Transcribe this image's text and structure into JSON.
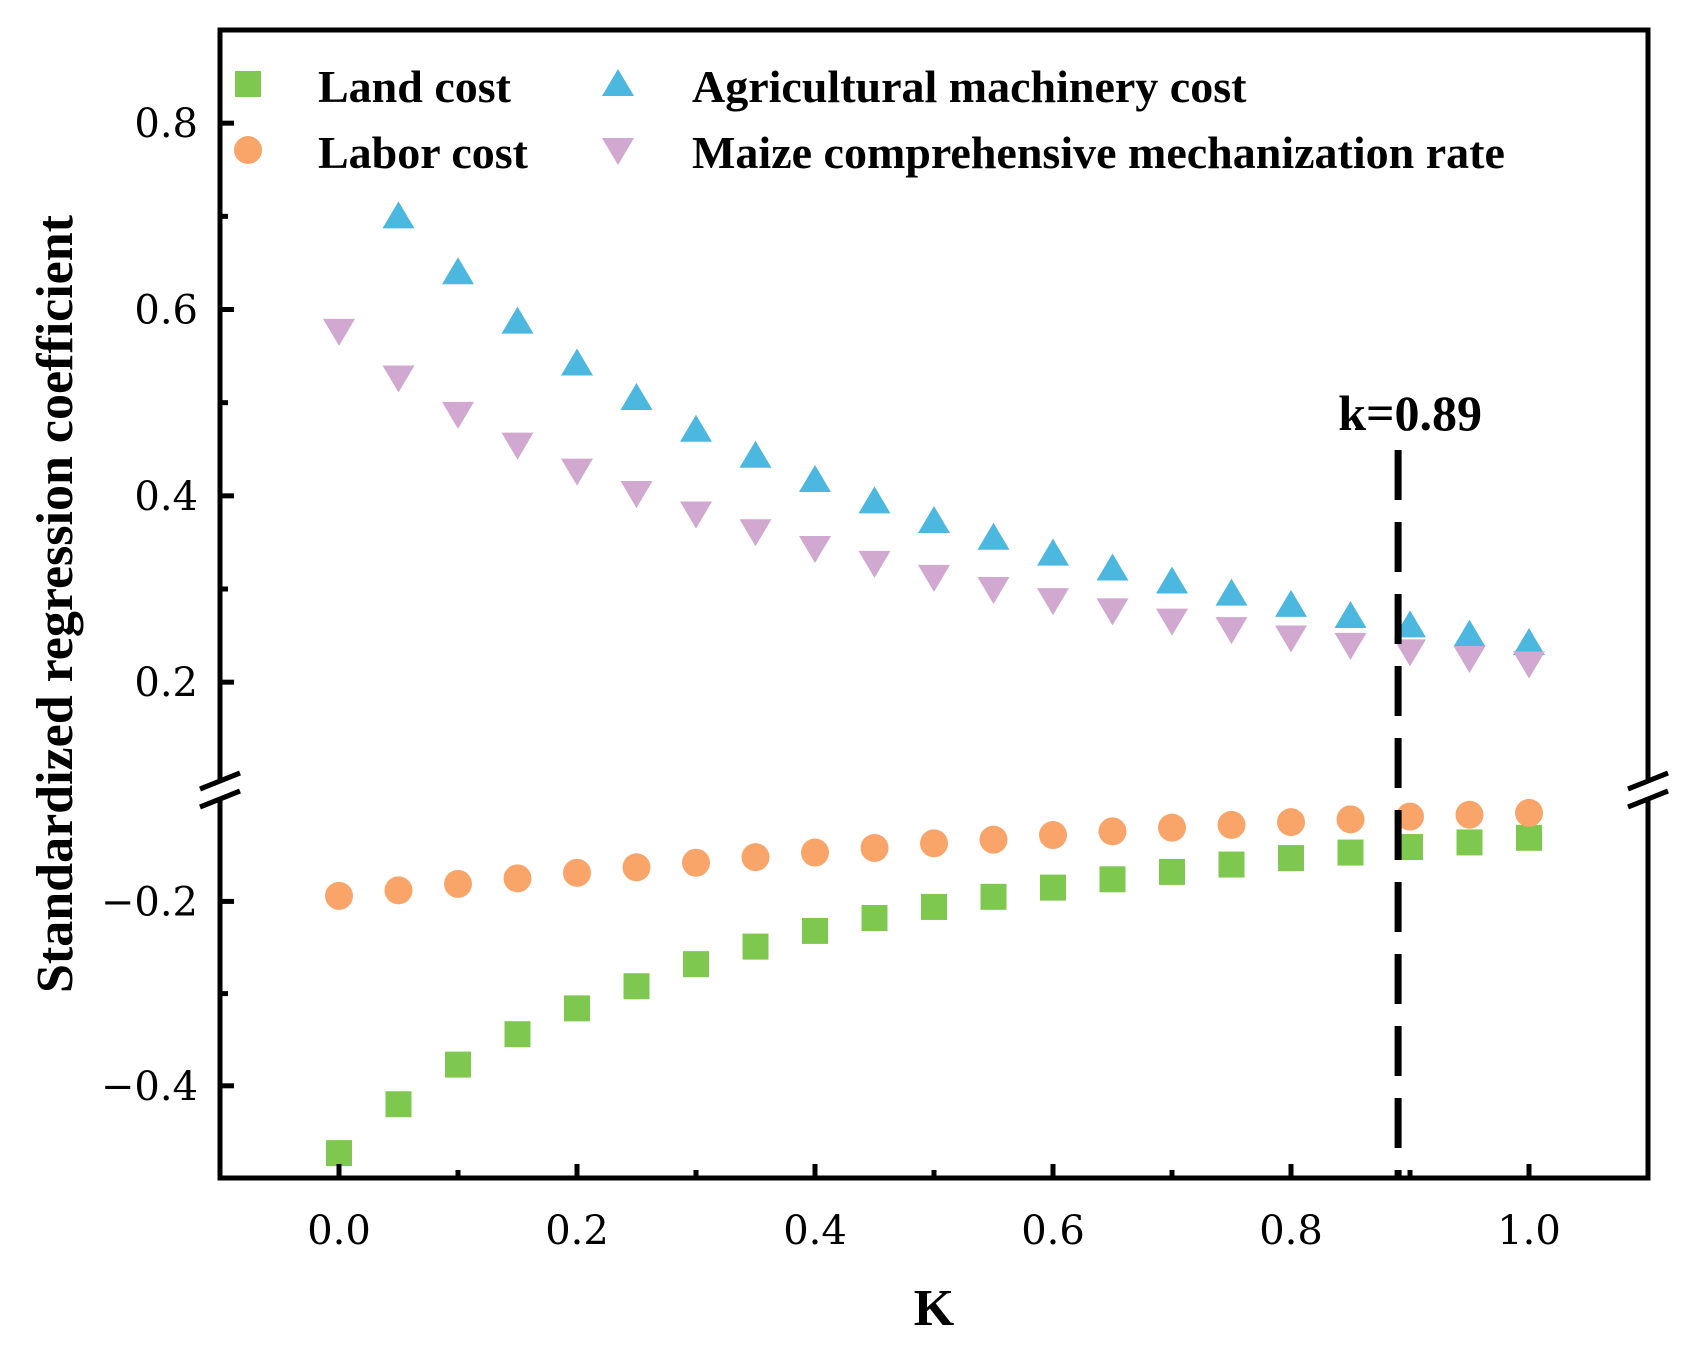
{
  "chart_data": {
    "type": "scatter",
    "xlabel": "K",
    "ylabel": "Standardized regression coefficient",
    "x": [
      0.0,
      0.05,
      0.1,
      0.15,
      0.2,
      0.25,
      0.3,
      0.35,
      0.4,
      0.45,
      0.5,
      0.55,
      0.6,
      0.65,
      0.7,
      0.75,
      0.8,
      0.85,
      0.9,
      0.95,
      1.0
    ],
    "xlim": [
      -0.1,
      1.1
    ],
    "x_ticks": [
      {
        "value": 0.0,
        "label": "0.0"
      },
      {
        "value": 0.2,
        "label": "0.2"
      },
      {
        "value": 0.4,
        "label": "0.4"
      },
      {
        "value": 0.6,
        "label": "0.6"
      },
      {
        "value": 0.8,
        "label": "0.8"
      },
      {
        "value": 1.0,
        "label": "1.0"
      }
    ],
    "x_minor_ticks": [
      0.1,
      0.3,
      0.5,
      0.7,
      0.9
    ],
    "y_axis_break": true,
    "y_upper_segment": {
      "ylim": [
        0.095,
        0.9
      ],
      "ticks": [
        {
          "value": 0.2,
          "label": "0.2"
        },
        {
          "value": 0.4,
          "label": "0.4"
        },
        {
          "value": 0.6,
          "label": "0.6"
        },
        {
          "value": 0.8,
          "label": "0.8"
        }
      ],
      "minor_ticks": [
        0.3,
        0.5,
        0.7
      ]
    },
    "y_lower_segment": {
      "ylim": [
        -0.5,
        -0.09
      ],
      "ticks": [
        {
          "value": -0.4,
          "label": "−0.4"
        },
        {
          "value": -0.2,
          "label": "−0.2"
        }
      ],
      "minor_ticks": [
        -0.3
      ]
    },
    "series": [
      {
        "name": "Land cost",
        "marker": "square",
        "color": "#7ec850",
        "segment": "lower",
        "values": [
          -0.473,
          -0.42,
          -0.377,
          -0.344,
          -0.316,
          -0.292,
          -0.268,
          -0.249,
          -0.232,
          -0.218,
          -0.206,
          -0.195,
          -0.185,
          -0.176,
          -0.168,
          -0.16,
          -0.153,
          -0.147,
          -0.141,
          -0.136,
          -0.131
        ]
      },
      {
        "name": "Labor cost",
        "marker": "circle",
        "color": "#f9a56a",
        "segment": "lower",
        "values": [
          -0.194,
          -0.188,
          -0.181,
          -0.175,
          -0.169,
          -0.163,
          -0.158,
          -0.152,
          -0.147,
          -0.142,
          -0.137,
          -0.133,
          -0.128,
          -0.124,
          -0.12,
          -0.117,
          -0.114,
          -0.111,
          -0.108,
          -0.106,
          -0.104
        ]
      },
      {
        "name": "Agricultural machinery cost",
        "marker": "triangle-up",
        "color": "#4cb8e0",
        "segment": "upper",
        "values": [
          null,
          0.7,
          0.64,
          0.587,
          0.542,
          0.505,
          0.471,
          0.443,
          0.417,
          0.394,
          0.373,
          0.355,
          0.338,
          0.322,
          0.308,
          0.295,
          0.283,
          0.271,
          0.261,
          0.251,
          0.242
        ]
      },
      {
        "name": "Maize comprehensive mechanization rate",
        "marker": "triangle-down",
        "color": "#d1a8d0",
        "segment": "upper",
        "values": [
          0.577,
          0.527,
          0.488,
          0.455,
          0.427,
          0.403,
          0.381,
          0.362,
          0.344,
          0.328,
          0.313,
          0.3,
          0.288,
          0.277,
          0.266,
          0.257,
          0.248,
          0.24,
          0.233,
          0.226,
          0.22
        ]
      }
    ],
    "legend_position": "top-left, two columns inside plot",
    "annotations": [
      {
        "text": "k=0.89",
        "x": 0.89,
        "style": "dashed vertical line"
      }
    ]
  }
}
